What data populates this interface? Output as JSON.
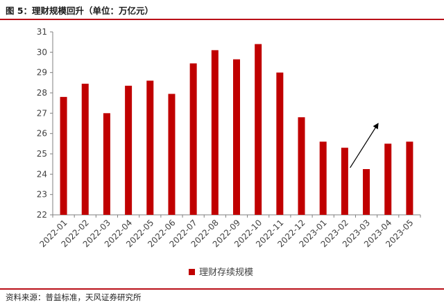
{
  "figure": {
    "title": "图 5：理财规模回升（单位：万亿元）",
    "source": "资料来源：普益标准，天风证券研究所"
  },
  "colors": {
    "bar": "#c00000",
    "rule": "#b90f17",
    "axis": "#7f7f7f",
    "text": "#404040"
  },
  "chart_data": {
    "type": "bar",
    "title": "",
    "xlabel": "",
    "ylabel": "",
    "ylim": [
      22,
      31
    ],
    "yticks": [
      22,
      23,
      24,
      25,
      26,
      27,
      28,
      29,
      30,
      31
    ],
    "grid": false,
    "legend_position": "bottom-center",
    "categories": [
      "2022-01",
      "2022-02",
      "2022-03",
      "2022-04",
      "2022-05",
      "2022-06",
      "2022-07",
      "2022-08",
      "2022-09",
      "2022-10",
      "2022-11",
      "2022-12",
      "2023-01",
      "2023-02",
      "2023-03",
      "2023-04",
      "2023-05"
    ],
    "series": [
      {
        "name": "理财存续规模",
        "values": [
          27.8,
          28.45,
          27.0,
          28.35,
          28.6,
          27.95,
          29.45,
          30.1,
          29.65,
          30.4,
          29.0,
          26.8,
          25.6,
          25.3,
          24.25,
          25.5,
          25.6
        ]
      }
    ],
    "annotations": [
      {
        "type": "arrow",
        "from_category": "2023-03",
        "to_category": "2023-04",
        "meaning": "upward trend arrow"
      }
    ]
  }
}
